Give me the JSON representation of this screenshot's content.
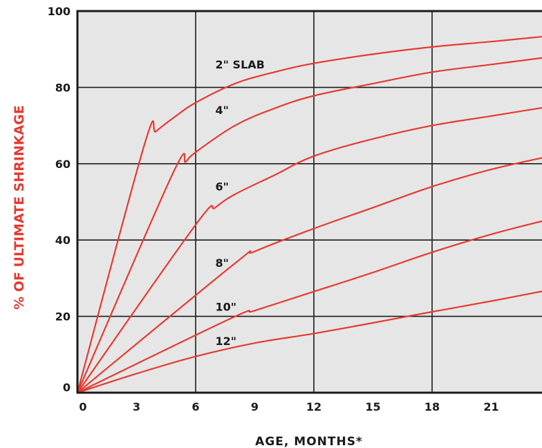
{
  "chart_data": {
    "type": "line",
    "xlabel": "AGE, MONTHS*",
    "ylabel": "% OF ULTIMATE SHRINKAGE",
    "xlim": [
      0,
      24
    ],
    "ylim": [
      0,
      100
    ],
    "x_ticks": [
      0,
      3,
      6,
      9,
      12,
      15,
      18,
      21
    ],
    "y_ticks": [
      0,
      20,
      40,
      60,
      80,
      100
    ],
    "x_gridlines": [
      6,
      12,
      18
    ],
    "y_gridlines": [
      20,
      40,
      60,
      80
    ],
    "line_color": "#e53a31",
    "plot_background": "#e6e6e6",
    "series": [
      {
        "name": "2\" SLAB",
        "label_at": [
          7,
          85
        ],
        "points": [
          [
            0,
            0
          ],
          [
            3.4,
            65
          ],
          [
            4,
            68.5
          ],
          [
            5,
            72.5
          ],
          [
            6,
            76
          ],
          [
            8,
            81
          ],
          [
            10,
            84
          ],
          [
            12,
            86.3
          ],
          [
            15,
            88.7
          ],
          [
            18,
            90.6
          ],
          [
            21,
            92
          ],
          [
            24,
            93.5
          ]
        ]
      },
      {
        "name": "4\"",
        "label_at": [
          7,
          73
        ],
        "points": [
          [
            0,
            0
          ],
          [
            4.8,
            57
          ],
          [
            5.5,
            60.5
          ],
          [
            6,
            63
          ],
          [
            8,
            70
          ],
          [
            10,
            74.5
          ],
          [
            12,
            77.8
          ],
          [
            15,
            81
          ],
          [
            18,
            84
          ],
          [
            21,
            86
          ],
          [
            24,
            88
          ]
        ]
      },
      {
        "name": "6\"",
        "label_at": [
          7,
          53
        ],
        "points": [
          [
            0,
            0
          ],
          [
            6,
            44
          ],
          [
            7,
            48.5
          ],
          [
            8,
            52
          ],
          [
            10,
            57
          ],
          [
            12,
            62
          ],
          [
            15,
            66.5
          ],
          [
            18,
            70
          ],
          [
            21,
            72.5
          ],
          [
            24,
            75
          ]
        ]
      },
      {
        "name": "8\"",
        "label_at": [
          7,
          33
        ],
        "points": [
          [
            0,
            0
          ],
          [
            7.9,
            33.5
          ],
          [
            9,
            37
          ],
          [
            12,
            43
          ],
          [
            15,
            48.5
          ],
          [
            18,
            54
          ],
          [
            21,
            58.5
          ],
          [
            24,
            62
          ]
        ]
      },
      {
        "name": "10\"",
        "label_at": [
          7,
          21.5
        ],
        "points": [
          [
            0,
            0
          ],
          [
            7.8,
            19.5
          ],
          [
            9,
            21.5
          ],
          [
            12,
            26.5
          ],
          [
            15,
            31.5
          ],
          [
            18,
            36.8
          ],
          [
            21,
            41.5
          ],
          [
            24,
            45.5
          ]
        ]
      },
      {
        "name": "12\"",
        "label_at": [
          7,
          12.5
        ],
        "points": [
          [
            0,
            0
          ],
          [
            3,
            5
          ],
          [
            6,
            9.5
          ],
          [
            9,
            13
          ],
          [
            12,
            15.5
          ],
          [
            15,
            18.3
          ],
          [
            18,
            21.2
          ],
          [
            21,
            24
          ],
          [
            24,
            27
          ]
        ]
      }
    ]
  }
}
